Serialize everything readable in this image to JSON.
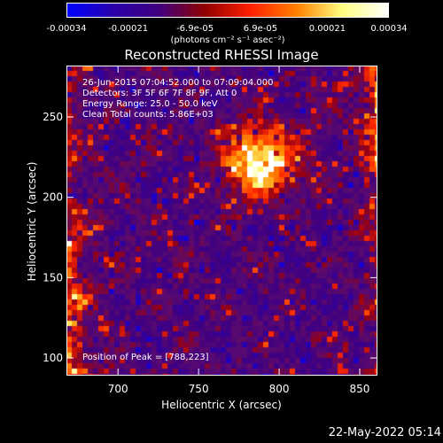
{
  "colorbar": {
    "tick_labels": [
      "-0.00034",
      "-0.00021",
      "-6.9e-05",
      "6.9e-05",
      "0.00021",
      "0.00034"
    ],
    "tick_values": [
      -0.00034,
      -0.00021,
      -6.9e-05,
      6.9e-05,
      0.00021,
      0.00034
    ],
    "unit_label": "(photons cm⁻² s⁻¹ asec⁻²)",
    "range": [
      -0.00034,
      0.00034
    ],
    "colors": [
      "#0000ff",
      "#2a00aa",
      "#400080",
      "#900000",
      "#ff2000",
      "#ff8000",
      "#ffff80",
      "#ffffff"
    ]
  },
  "info": {
    "time": "26-Jun-2015 07:04:52.000 to 07:09:04.000",
    "detectors": "Detectors: 3F 5F 6F 7F 8F 9F, Att 0",
    "energy": "Energy Range: 25.0 - 50.0 keV",
    "clean": "Clean     Total counts: 5.86E+03",
    "peak": "Position of Peak = [788,223]"
  },
  "footer": {
    "date": "22-May-2022 05:14"
  },
  "chart_data": {
    "type": "heatmap",
    "title": "Reconstructed RHESSI Image",
    "xlabel": "Heliocentric X (arcsec)",
    "ylabel": "Heliocentric Y (arcsec)",
    "xlim": [
      668,
      861
    ],
    "ylim": [
      89,
      282
    ],
    "xticks": [
      700,
      750,
      800,
      850
    ],
    "yticks": [
      100,
      150,
      200,
      250
    ],
    "peak": [
      788,
      223
    ],
    "colormap_range": [
      -0.00034,
      0.00034
    ]
  }
}
